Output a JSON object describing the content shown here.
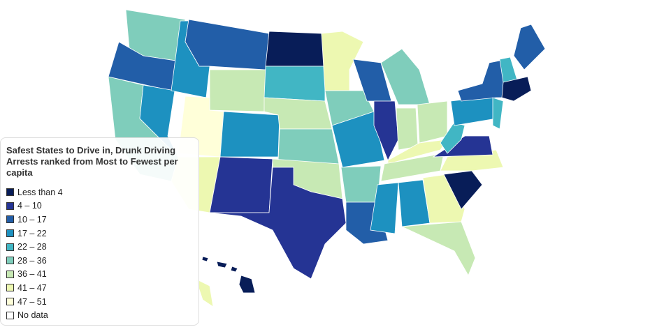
{
  "legend": {
    "title": "Safest States to Drive in, Drunk Driving Arrests ranked from Most to Fewest per capita",
    "items": [
      {
        "label": "Less than 4",
        "color": "#081d58"
      },
      {
        "label": "4 – 10",
        "color": "#253494"
      },
      {
        "label": "10 – 17",
        "color": "#225ea8"
      },
      {
        "label": "17 – 22",
        "color": "#1d91c0"
      },
      {
        "label": "22 – 28",
        "color": "#41b6c4"
      },
      {
        "label": "28 – 36",
        "color": "#7fcdbb"
      },
      {
        "label": "36 – 41",
        "color": "#c7e9b4"
      },
      {
        "label": "41 – 47",
        "color": "#edf8b1"
      },
      {
        "label": "47 – 51",
        "color": "#ffffd9"
      },
      {
        "label": "No data",
        "color": "#ffffff"
      }
    ]
  }
}
